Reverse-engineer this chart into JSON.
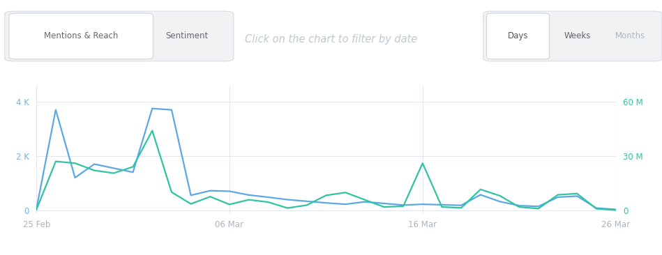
{
  "title": "Click on the chart to filter by date",
  "title_color": "#c0c8d0",
  "title_fontsize": 10.5,
  "bg_color": "#ffffff",
  "grid_color": "#e4e8ee",
  "mentions_color": "#5ba8e5",
  "reach_color": "#2ec4a0",
  "mentions_label": "Mentions",
  "reach_label": "Reach",
  "left_yticks": [
    0,
    2000,
    4000
  ],
  "left_yticklabels": [
    "0",
    "2 K",
    "4 K"
  ],
  "right_yticks": [
    0,
    30000000,
    60000000
  ],
  "right_yticklabels": [
    "0",
    "30 M",
    "60 M"
  ],
  "ylim_left": [
    -100,
    4600
  ],
  "ylim_right": [
    -1500000,
    69000000
  ],
  "xtick_labels": [
    "25 Feb",
    "06 Mar",
    "16 Mar",
    "26 Mar"
  ],
  "xtick_positions": [
    0,
    10,
    20,
    30
  ],
  "x_days": [
    0,
    1,
    2,
    3,
    4,
    5,
    6,
    7,
    8,
    9,
    10,
    11,
    12,
    13,
    14,
    15,
    16,
    17,
    18,
    19,
    20,
    21,
    22,
    23,
    24,
    25,
    26,
    27,
    28,
    29,
    30
  ],
  "mentions": [
    50,
    3700,
    1200,
    1700,
    1550,
    1400,
    3750,
    3700,
    550,
    720,
    700,
    560,
    480,
    390,
    330,
    270,
    220,
    310,
    250,
    190,
    220,
    200,
    180,
    570,
    320,
    170,
    140,
    480,
    520,
    80,
    30
  ],
  "reach": [
    300000,
    27000000,
    26000000,
    22000000,
    20500000,
    24000000,
    44000000,
    10000000,
    3500000,
    7500000,
    3200000,
    5800000,
    4500000,
    1200000,
    2800000,
    8200000,
    9800000,
    5800000,
    1800000,
    2200000,
    26000000,
    1800000,
    1300000,
    11500000,
    8000000,
    1800000,
    900000,
    8500000,
    9200000,
    800000,
    100000
  ],
  "tab_labels": [
    "Mentions & Reach",
    "Sentiment"
  ],
  "period_labels": [
    "Days",
    "Weeks",
    "Months"
  ],
  "left_yaxis_color": "#7ab0dc",
  "right_yaxis_color": "#2ec4a0",
  "tick_color": "#aab4be",
  "tab_box_color": "#f0f2f4",
  "tab_active_color": "#ffffff",
  "tab_text_color": "#666870",
  "period_box_color": "#f0f2f4",
  "period_active_bg": "#ffffff",
  "days_active_color": "#555860",
  "weeks_color": "#666870",
  "months_color": "#b0b8c4"
}
